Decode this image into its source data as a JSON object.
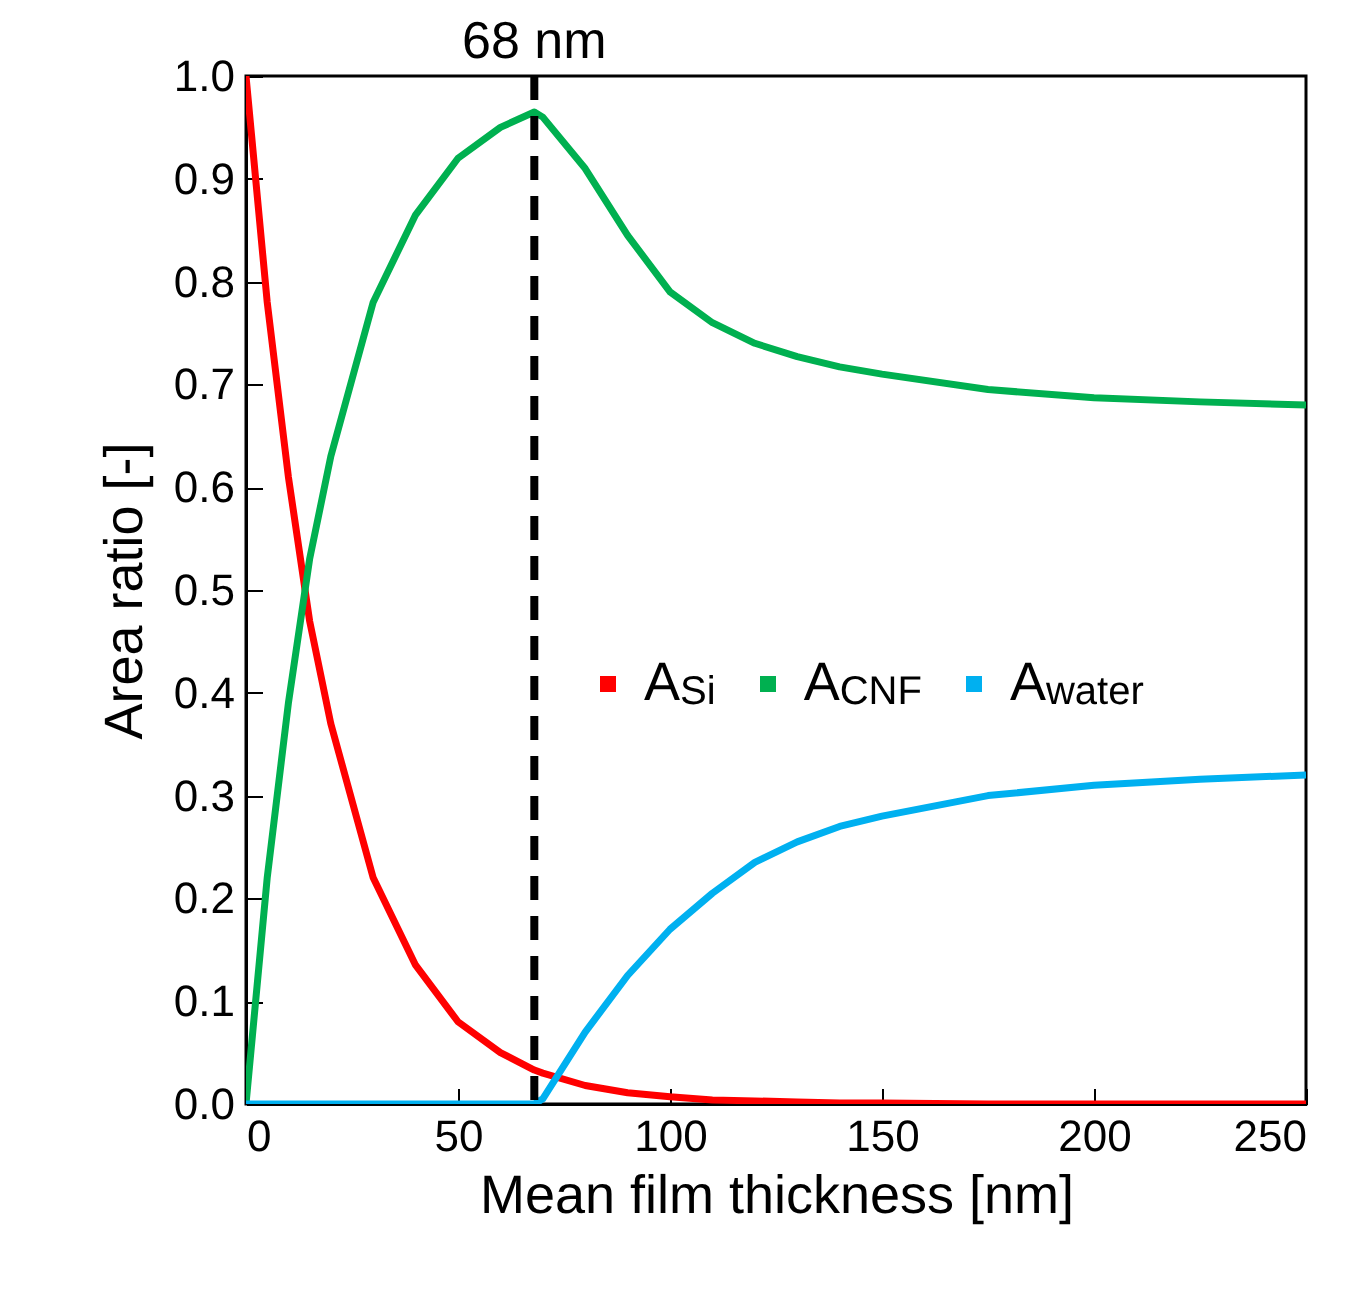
{
  "chart_data": {
    "type": "line",
    "xlabel": "Mean film thickness [nm]",
    "ylabel": "Area ratio [-]",
    "x": [
      0,
      5,
      10,
      15,
      20,
      30,
      40,
      50,
      60,
      68,
      70,
      80,
      90,
      100,
      110,
      120,
      130,
      140,
      150,
      175,
      200,
      225,
      250
    ],
    "series": [
      {
        "name": "A$_{Si}$",
        "color": "#ff0000",
        "values": [
          1,
          0.78,
          0.61,
          0.47,
          0.37,
          0.22,
          0.135,
          0.08,
          0.05,
          0.033,
          0.03,
          0.018,
          0.011,
          0.007,
          0.004,
          0.003,
          0.002,
          0.001,
          0.001,
          0,
          0,
          0,
          0
        ]
      },
      {
        "name": "A$_{CNF}$",
        "color": "#00b050",
        "values": [
          0,
          0.22,
          0.39,
          0.53,
          0.63,
          0.78,
          0.865,
          0.92,
          0.95,
          0.965,
          0.96,
          0.91,
          0.845,
          0.79,
          0.76,
          0.74,
          0.727,
          0.717,
          0.71,
          0.695,
          0.687,
          0.683,
          0.68
        ]
      },
      {
        "name": "A$_{water}$",
        "color": "#00b0f0",
        "values": [
          0,
          0,
          0,
          0,
          0,
          0,
          0,
          0,
          0,
          0,
          0.005,
          0.07,
          0.125,
          0.17,
          0.205,
          0.235,
          0.255,
          0.27,
          0.28,
          0.3,
          0.31,
          0.316,
          0.32
        ]
      }
    ],
    "xlim": [
      0,
      250
    ],
    "xticks": [
      0,
      50,
      100,
      150,
      200,
      250
    ],
    "ylim": [
      0,
      1
    ],
    "yticks": [
      {
        "value": 0,
        "label": "0.0"
      },
      {
        "value": 0.1,
        "label": "0.1"
      },
      {
        "value": 0.2,
        "label": "0.2"
      },
      {
        "value": 0.3,
        "label": "0.3"
      },
      {
        "value": 0.4,
        "label": "0.4"
      },
      {
        "value": 0.5,
        "label": "0.5"
      },
      {
        "value": 0.6,
        "label": "0.6"
      },
      {
        "value": 0.7,
        "label": "0.7"
      },
      {
        "value": 0.8,
        "label": "0.8"
      },
      {
        "value": 0.9,
        "label": "0.9"
      },
      {
        "value": 1,
        "label": "1.0"
      }
    ],
    "ref_lines": [
      {
        "axis": "x",
        "value": 68,
        "label": "68 nm",
        "color": "#000000",
        "line_style": "dashed"
      }
    ],
    "legend": "right",
    "grid": false,
    "marker": "none",
    "line_style": "solid"
  }
}
